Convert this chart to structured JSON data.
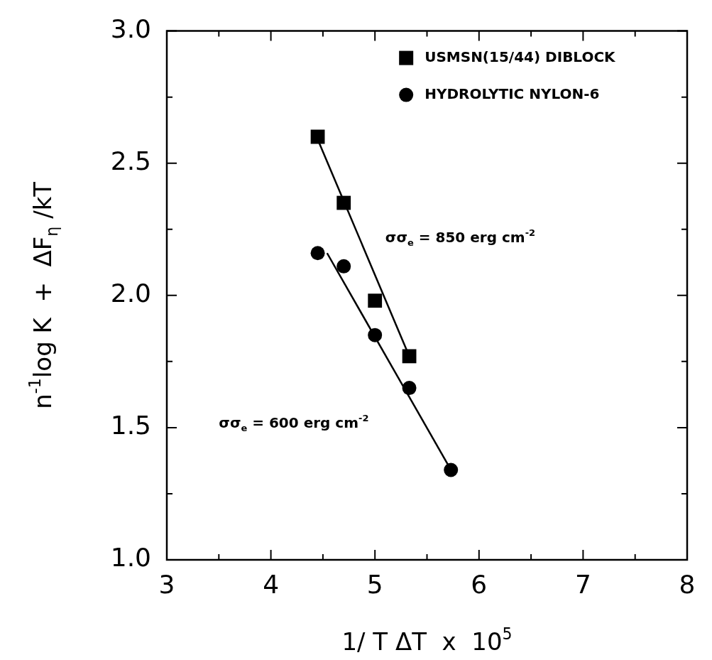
{
  "chart_data": {
    "type": "scatter",
    "xlabel": "1/ T ΔT  x  10$^{5}$",
    "ylabel": "n$^{-1}$log K  +  ΔF$_{η}$ /kT",
    "xlim": [
      3,
      8
    ],
    "xticks": [
      3,
      {
        "value": 3.5,
        "label": null
      },
      4,
      {
        "value": 4.5,
        "label": null
      },
      5,
      {
        "value": 5.5,
        "label": null
      },
      6,
      {
        "value": 6.5,
        "label": null
      },
      7,
      {
        "value": 7.5,
        "label": null
      },
      8
    ],
    "ylim": [
      1,
      3
    ],
    "yticks": [
      {
        "value": 1,
        "label": "1.0"
      },
      {
        "value": 1.25,
        "label": null
      },
      {
        "value": 1.5,
        "label": "1.5"
      },
      {
        "value": 1.75,
        "label": null
      },
      {
        "value": 2,
        "label": "2.0"
      },
      {
        "value": 2.25,
        "label": null
      },
      {
        "value": 2.5,
        "label": "2.5"
      },
      {
        "value": 2.75,
        "label": null
      },
      {
        "value": 3,
        "label": "3.0"
      }
    ],
    "grid": false,
    "legend": "top right",
    "series": [
      {
        "name": "USMSN(15/44) DIBLOCK",
        "type": "scatter",
        "marker": "square",
        "color": "#000000",
        "x": [
          4.45,
          4.7,
          5.0,
          5.33
        ],
        "values": [
          2.6,
          2.35,
          1.98,
          1.77
        ]
      },
      {
        "name": "HYDROLYTIC NYLON-6",
        "type": "scatter",
        "marker": "circle",
        "color": "#000000",
        "x": [
          4.45,
          4.7,
          5.0,
          5.33,
          5.73
        ],
        "values": [
          2.16,
          2.11,
          1.85,
          1.65,
          1.34
        ]
      },
      {
        "type": "line",
        "marker": "none",
        "color": "#000000",
        "x": [
          4.45,
          5.33
        ],
        "values": [
          2.59,
          1.77
        ]
      },
      {
        "type": "line",
        "marker": "none",
        "color": "#000000",
        "x": [
          4.54,
          5.73
        ],
        "values": [
          2.16,
          1.34
        ]
      }
    ],
    "annotations": [
      "σσ$_{e}$ = 850 erg cm$^{-2}$",
      "σσ$_{e}$ = 600 erg cm$^{-2}$"
    ]
  }
}
